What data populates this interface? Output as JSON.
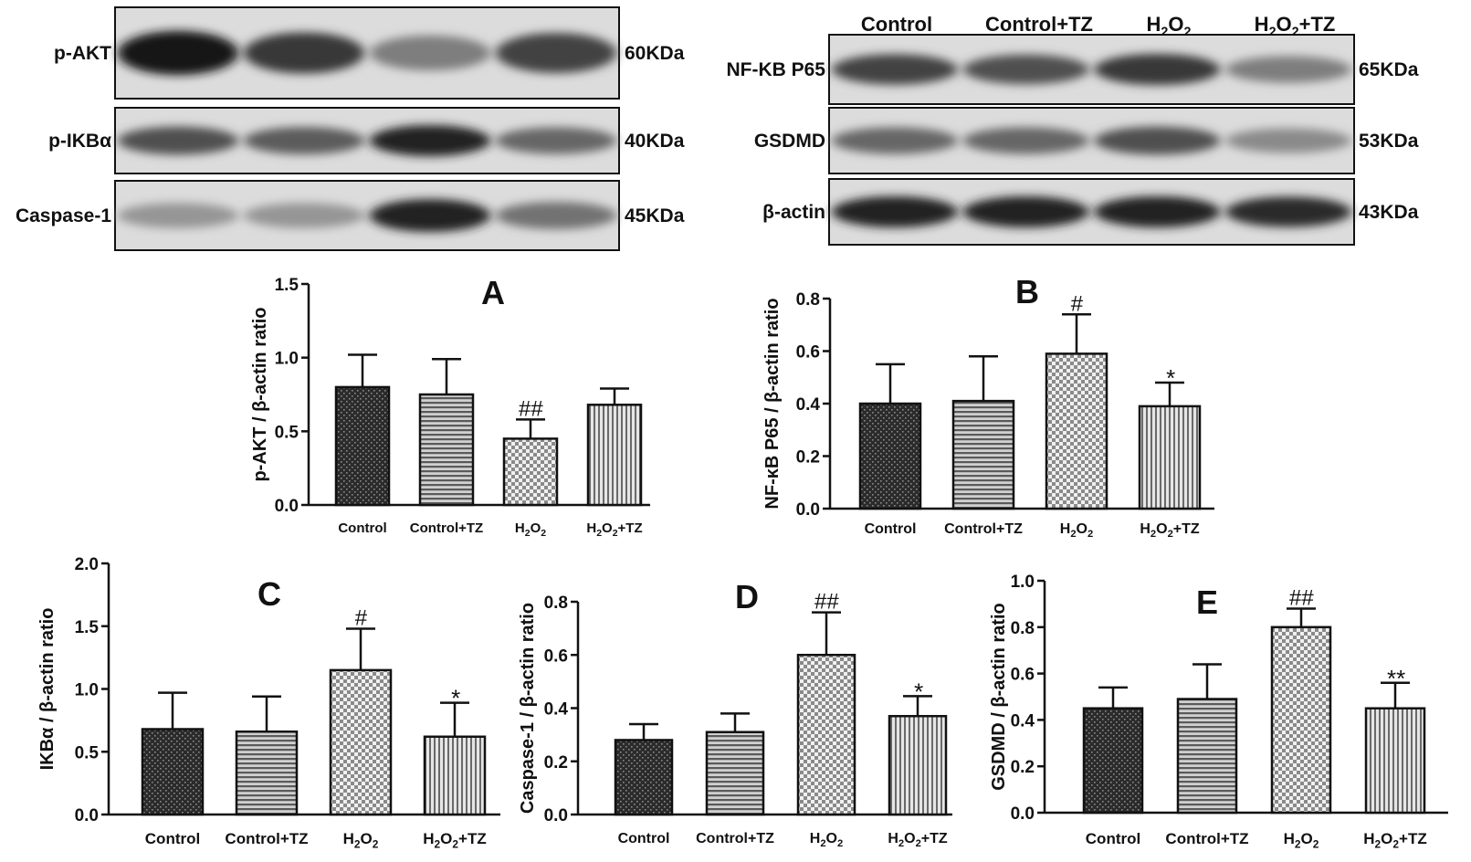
{
  "blots": {
    "left": {
      "lanes": [
        [
          "Control",
          ""
        ],
        [
          "Control+TZ",
          ""
        ],
        [
          "H",
          "2",
          "O",
          "2"
        ],
        [
          "H",
          "2",
          "O",
          "2",
          "+TZ"
        ]
      ],
      "rows": [
        {
          "name": "p-AKT",
          "mw": "60KDa",
          "intensity": [
            1.0,
            0.85,
            0.55,
            0.8
          ]
        },
        {
          "name": "p-IKBα",
          "mw": "40KDa",
          "intensity": [
            0.75,
            0.7,
            0.95,
            0.65
          ]
        },
        {
          "name": "Caspase-1",
          "mw": "45KDa",
          "intensity": [
            0.45,
            0.45,
            0.95,
            0.6
          ]
        }
      ]
    },
    "right": {
      "lanes": [
        [
          "Control",
          ""
        ],
        [
          "Control+TZ",
          ""
        ],
        [
          "H",
          "2",
          "O",
          "2"
        ],
        [
          "H",
          "2",
          "O",
          "2",
          "+TZ"
        ]
      ],
      "rows": [
        {
          "name": "NF-KB P65",
          "mw": "65KDa",
          "intensity": [
            0.8,
            0.75,
            0.85,
            0.55
          ]
        },
        {
          "name": "GSDMD",
          "mw": "53KDa",
          "intensity": [
            0.65,
            0.65,
            0.75,
            0.5
          ]
        },
        {
          "name": "β-actin",
          "mw": "43KDa",
          "intensity": [
            0.95,
            0.95,
            0.95,
            0.9
          ]
        }
      ]
    }
  },
  "colors": {
    "bar_fills": [
      "#2b2b2b",
      "#909090",
      "#bcbcbc",
      "#bdbdbd"
    ],
    "axis": "#111111"
  },
  "chart_data": [
    {
      "type": "bar",
      "panel": "A",
      "categories": [
        "Control",
        "Control+TZ",
        "H₂O₂",
        "H₂O₂+TZ"
      ],
      "values": [
        0.8,
        0.75,
        0.45,
        0.68
      ],
      "errors": [
        0.22,
        0.24,
        0.13,
        0.11
      ],
      "significance": [
        "",
        "",
        "##",
        ""
      ],
      "ylabel": "p-AKT / β-actin ratio",
      "ylim": [
        0,
        1.5
      ],
      "yticks": [
        "0.0",
        "0.5",
        "1.0",
        "1.5"
      ],
      "grid": false
    },
    {
      "type": "bar",
      "panel": "B",
      "categories": [
        "Control",
        "Control+TZ",
        "H₂O₂",
        "H₂O₂+TZ"
      ],
      "values": [
        0.4,
        0.41,
        0.59,
        0.39
      ],
      "errors": [
        0.15,
        0.17,
        0.15,
        0.09
      ],
      "significance": [
        "",
        "",
        "#",
        "*"
      ],
      "ylabel": "NF-κB P65 / β-actin ratio",
      "ylim": [
        0,
        0.8
      ],
      "yticks": [
        "0.0",
        "0.2",
        "0.4",
        "0.6",
        "0.8"
      ],
      "grid": false
    },
    {
      "type": "bar",
      "panel": "C",
      "categories": [
        "Control",
        "Control+TZ",
        "H₂O₂",
        "H₂O₂+TZ"
      ],
      "values": [
        0.68,
        0.66,
        1.15,
        0.62
      ],
      "errors": [
        0.29,
        0.28,
        0.33,
        0.27
      ],
      "significance": [
        "",
        "",
        "#",
        "*"
      ],
      "ylabel": "IKBα / β-actin ratio",
      "ylim": [
        0,
        2.0
      ],
      "yticks": [
        "0.0",
        "0.5",
        "1.0",
        "1.5",
        "2.0"
      ],
      "grid": false
    },
    {
      "type": "bar",
      "panel": "D",
      "categories": [
        "Control",
        "Control+TZ",
        "H₂O₂",
        "H₂O₂+TZ"
      ],
      "values": [
        0.28,
        0.31,
        0.6,
        0.37
      ],
      "errors": [
        0.06,
        0.07,
        0.16,
        0.075
      ],
      "significance": [
        "",
        "",
        "##",
        "*"
      ],
      "ylabel": "Caspase-1 / β-actin ratio",
      "ylim": [
        0,
        0.8
      ],
      "yticks": [
        "0.0",
        "0.2",
        "0.4",
        "0.6",
        "0.8"
      ],
      "grid": false
    },
    {
      "type": "bar",
      "panel": "E",
      "categories": [
        "Control",
        "Control+TZ",
        "H₂O₂",
        "H₂O₂+TZ"
      ],
      "values": [
        0.45,
        0.49,
        0.8,
        0.45
      ],
      "errors": [
        0.09,
        0.15,
        0.08,
        0.11
      ],
      "significance": [
        "",
        "",
        "##",
        "**"
      ],
      "ylabel": "GSDMD / β-actin ratio",
      "ylim": [
        0,
        1.0
      ],
      "yticks": [
        "0.0",
        "0.2",
        "0.4",
        "0.6",
        "0.8",
        "1.0"
      ],
      "grid": false
    }
  ]
}
